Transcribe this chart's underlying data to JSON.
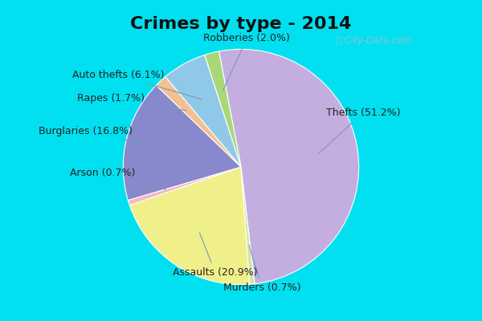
{
  "title": "Crimes by type - 2014",
  "labels": [
    "Thefts",
    "Murders",
    "Assaults",
    "Arson",
    "Burglaries",
    "Rapes",
    "Auto thefts",
    "Robberies"
  ],
  "values": [
    51.2,
    0.7,
    20.9,
    0.7,
    16.8,
    1.7,
    6.1,
    2.0
  ],
  "colors": [
    "#c4aee0",
    "#d4e8a0",
    "#f0f08a",
    "#f5b8c0",
    "#8888cc",
    "#f4c090",
    "#90c8e8",
    "#a8d878"
  ],
  "bg_cyan": "#00e0f0",
  "bg_main": "#cce8d8",
  "title_fontsize": 16,
  "label_fontsize": 9,
  "watermark": "ⓘ City-Data.com",
  "startangle": 100.8,
  "annotations": [
    {
      "label": "Thefts (51.2%)",
      "idx": 0,
      "xt": 0.72,
      "yt": 0.46,
      "ha": "left",
      "va": "center"
    },
    {
      "label": "Murders (0.7%)",
      "idx": 1,
      "xt": 0.18,
      "yt": -0.98,
      "ha": "center",
      "va": "top"
    },
    {
      "label": "Assaults (20.9%)",
      "idx": 2,
      "xt": -0.22,
      "yt": -0.85,
      "ha": "center",
      "va": "top"
    },
    {
      "label": "Arson (0.7%)",
      "idx": 3,
      "xt": -0.9,
      "yt": -0.05,
      "ha": "right",
      "va": "center"
    },
    {
      "label": "Burglaries (16.8%)",
      "idx": 4,
      "xt": -0.92,
      "yt": 0.3,
      "ha": "right",
      "va": "center"
    },
    {
      "label": "Rapes (1.7%)",
      "idx": 5,
      "xt": -0.82,
      "yt": 0.58,
      "ha": "right",
      "va": "center"
    },
    {
      "label": "Auto thefts (6.1%)",
      "idx": 6,
      "xt": -0.65,
      "yt": 0.78,
      "ha": "right",
      "va": "center"
    },
    {
      "label": "Robberies (2.0%)",
      "idx": 7,
      "xt": 0.05,
      "yt": 1.05,
      "ha": "center",
      "va": "bottom"
    }
  ]
}
